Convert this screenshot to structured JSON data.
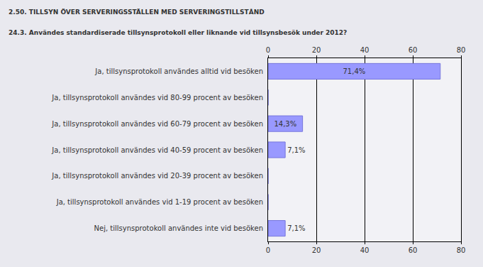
{
  "chart_data": {
    "type": "bar",
    "orientation": "horizontal",
    "title": "2.50. TILLSYN ÖVER SERVERINGSSTÄLLEN MED SERVERINGSTILLSTÅND",
    "subtitle": "24.3. Användes standardiserade tillsynsprotokoll eller liknande vid tillsynsbesök under 2012?",
    "categories": [
      "Ja, tillsynsprotokoll användes alltid vid besöken",
      "Ja, tillsynsprotokoll användes vid 80-99 procent av besöken",
      "Ja, tillsynsprotokoll användes vid 60-79 procent av besöken",
      "Ja, tillsynsprotokoll användes vid 40-59 procent av besöken",
      "Ja, tillsynsprotokoll användes vid 20-39 procent av besöken",
      "Ja, tillsynsprotokoll användes vid 1-19 procent av besöken",
      "Nej, tillsynsprotokoll användes inte vid besöken"
    ],
    "values": [
      71.4,
      0,
      14.3,
      7.1,
      0,
      0,
      7.1
    ],
    "value_labels": [
      "71,4%",
      null,
      "14,3%",
      "7,1%",
      null,
      null,
      "7,1%"
    ],
    "data_labels": true,
    "color": "#9999ff",
    "xlim": [
      0,
      80
    ],
    "xticks": [
      0,
      20,
      40,
      60,
      80
    ],
    "grid": true
  }
}
